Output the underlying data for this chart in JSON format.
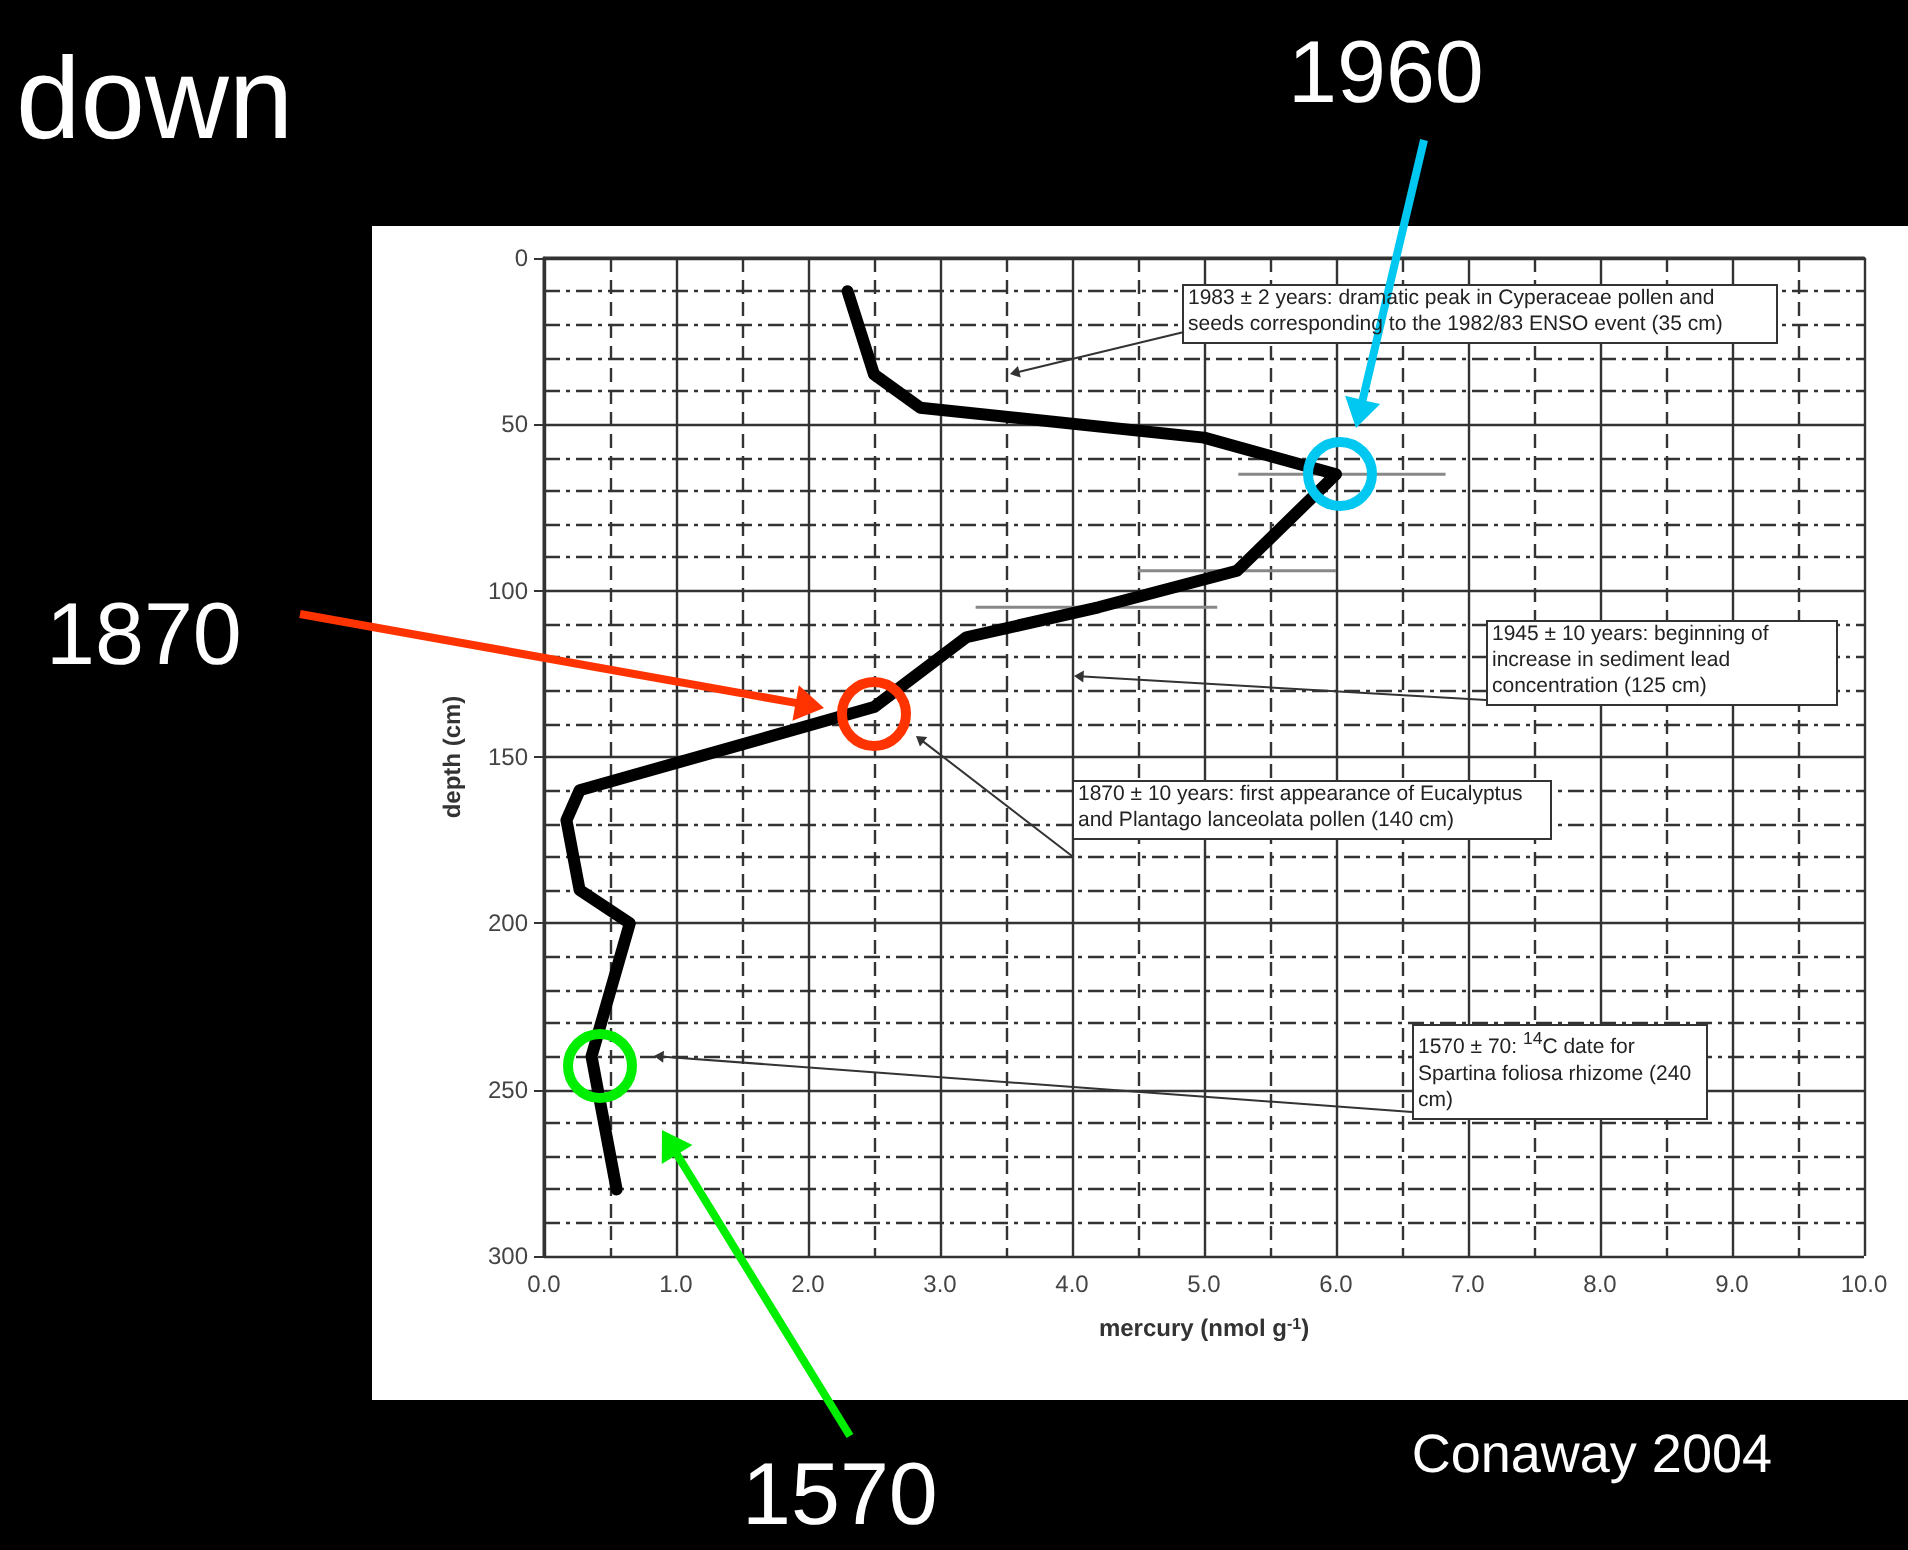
{
  "chart_data": {
    "type": "line",
    "title": "down",
    "xlabel": "mercury (nmol g$^{-1}$)",
    "ylabel": "depth (cm)",
    "series": [
      {
        "color": "#000000",
        "x": [
          2.3,
          2.5,
          2.85,
          5.0,
          6.0,
          5.25,
          4.2,
          3.2,
          2.5,
          0.27,
          0.17,
          0.27,
          0.65,
          0.36,
          0.55
        ],
        "values": [
          10,
          35,
          45,
          54,
          65,
          94,
          105,
          114,
          135,
          160,
          169,
          190,
          200,
          240,
          280
        ],
        "xerrors": [
          null,
          null,
          null,
          null,
          [
            5.26,
            6.83
          ],
          [
            4.5,
            6.0
          ],
          [
            3.27,
            5.1
          ],
          null,
          null,
          null,
          null,
          null,
          null,
          null,
          null
        ]
      }
    ],
    "xlim": [
      0,
      10
    ],
    "ylim": [
      300,
      0
    ],
    "xticks": [
      {
        "value": 0,
        "label": "0.0"
      },
      {
        "value": 1,
        "label": "1.0"
      },
      {
        "value": 2,
        "label": "2.0"
      },
      {
        "value": 3,
        "label": "3.0"
      },
      {
        "value": 4,
        "label": "4.0"
      },
      {
        "value": 5,
        "label": "5.0"
      },
      {
        "value": 6,
        "label": "6.0"
      },
      {
        "value": 7,
        "label": "7.0"
      },
      {
        "value": 8,
        "label": "8.0"
      },
      {
        "value": 9,
        "label": "9.0"
      },
      {
        "value": 10,
        "label": "10.0"
      }
    ],
    "yticks": [
      0,
      50,
      100,
      150,
      200,
      250,
      300
    ],
    "grid": true,
    "marker": "none",
    "line_style": "solid",
    "annotations": [
      "1983 ± 2 years: dramatic peak in Cyperaceae pollen and seeds corresponding to the 1982/83 ENSO event (35 cm)",
      "1945 ± 10 years: beginning of increase in sediment lead concentration (125 cm)",
      "1870 ± 10 years: first appearance of Eucalyptus and Plantago lanceolata pollen (140 cm)",
      "1570 ± 70: $^{14}$C date for Spartina foliosa rhizome (240 cm)",
      "1960",
      "1870",
      "1570",
      "Conaway 2004"
    ]
  }
}
